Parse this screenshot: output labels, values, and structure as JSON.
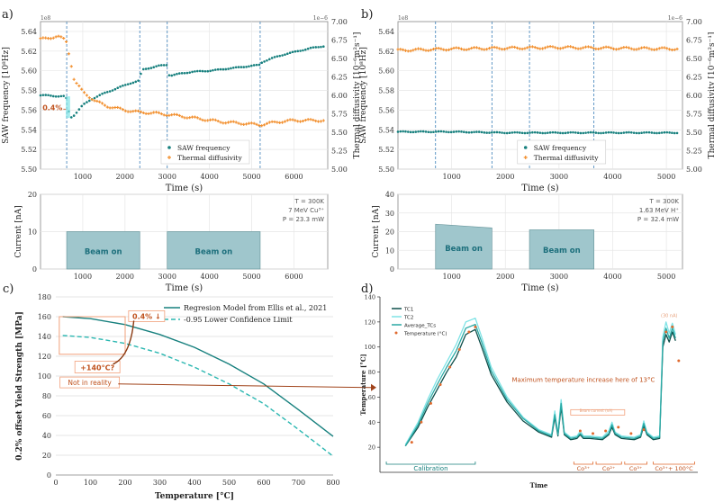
{
  "panel_labels": [
    "a)",
    "b)",
    "c)",
    "d)"
  ],
  "chart_data": [
    {
      "id": "a_top",
      "type": "line",
      "title": "",
      "xlabel": "Time (s)",
      "ylabel": "SAW frequency [10⁸Hz]",
      "y2label": "Thermal diffusivity [10⁻⁶m²s⁻¹]",
      "xlim": [
        0,
        6800
      ],
      "ylim": [
        5.5,
        5.65
      ],
      "y2lim": [
        5.0,
        7.0
      ],
      "xticks": [
        1000,
        2000,
        3000,
        4000,
        5000,
        6000
      ],
      "yticks": [
        5.5,
        5.52,
        5.54,
        5.56,
        5.58,
        5.6,
        5.62,
        5.64
      ],
      "y2ticks": [
        5.0,
        5.25,
        5.5,
        5.75,
        6.0,
        6.25,
        6.5,
        6.75,
        7.0
      ],
      "scale_left": "1e8",
      "scale_right": "1e−6",
      "vlines": [
        620,
        2350,
        3000,
        5200
      ],
      "annotation": "0.4%",
      "legend": [
        "SAW frequency",
        "Thermal diffusivity"
      ],
      "series": [
        {
          "name": "SAW frequency",
          "axis": "left",
          "color": "#17807e",
          "x": [
            0,
            200,
            400,
            600,
            700,
            800,
            1000,
            1200,
            1500,
            1800,
            2100,
            2340,
            2400,
            2600,
            2800,
            2990,
            3050,
            3300,
            3600,
            4000,
            4400,
            4800,
            5190,
            5250,
            5500,
            5800,
            6100,
            6400,
            6700
          ],
          "y": [
            5.575,
            5.575,
            5.574,
            5.574,
            5.552,
            5.555,
            5.565,
            5.571,
            5.577,
            5.582,
            5.587,
            5.59,
            5.601,
            5.603,
            5.605,
            5.606,
            5.595,
            5.597,
            5.599,
            5.6,
            5.602,
            5.604,
            5.606,
            5.609,
            5.613,
            5.617,
            5.62,
            5.623,
            5.625
          ]
        },
        {
          "name": "Thermal diffusivity",
          "axis": "right",
          "color": "#f28e2b",
          "x": [
            0,
            200,
            400,
            600,
            700,
            800,
            1000,
            1300,
            1600,
            2000,
            2350,
            2700,
            3000,
            3300,
            3800,
            4300,
            4800,
            5200,
            5600,
            6000,
            6400,
            6700
          ],
          "y": [
            6.76,
            6.78,
            6.8,
            6.75,
            6.5,
            6.2,
            6.05,
            5.92,
            5.85,
            5.8,
            5.77,
            5.76,
            5.74,
            5.72,
            5.68,
            5.64,
            5.62,
            5.6,
            5.64,
            5.66,
            5.66,
            5.66
          ]
        }
      ]
    },
    {
      "id": "a_bottom",
      "type": "area",
      "xlabel": "Time (s)",
      "ylabel": "Current [nA]",
      "xlim": [
        0,
        6800
      ],
      "ylim": [
        0,
        20
      ],
      "xticks": [
        1000,
        2000,
        3000,
        4000,
        5000,
        6000
      ],
      "yticks": [
        0,
        10,
        20
      ],
      "info": [
        "T = 300K",
        "7 MeV Cu³⁺",
        "P = 23.3 mW"
      ],
      "segments": [
        {
          "x0": 620,
          "x1": 2350,
          "level": 10,
          "label": "Beam on"
        },
        {
          "x0": 3000,
          "x1": 5200,
          "level": 10,
          "label": "Beam on"
        }
      ]
    },
    {
      "id": "b_top",
      "type": "line",
      "xlabel": "Time (s)",
      "ylabel": "SAW frequency [10⁸Hz]",
      "y2label": "Thermal diffusivity [10⁻⁶m²s⁻¹]",
      "xlim": [
        0,
        5300
      ],
      "ylim": [
        5.5,
        5.65
      ],
      "y2lim": [
        5.0,
        7.0
      ],
      "xticks": [
        1000,
        2000,
        3000,
        4000,
        5000
      ],
      "yticks": [
        5.5,
        5.52,
        5.54,
        5.56,
        5.58,
        5.6,
        5.62,
        5.64
      ],
      "y2ticks": [
        5.0,
        5.25,
        5.5,
        5.75,
        6.0,
        6.25,
        6.5,
        6.75,
        7.0
      ],
      "scale_left": "1e8",
      "scale_right": "1e−6",
      "vlines": [
        700,
        1750,
        2450,
        3650
      ],
      "legend": [
        "SAW frequency",
        "Thermal diffusivity"
      ],
      "series": [
        {
          "name": "SAW frequency",
          "axis": "left",
          "color": "#17807e",
          "x": [
            0,
            1000,
            2000,
            3000,
            4000,
            5200
          ],
          "y": [
            5.538,
            5.538,
            5.537,
            5.537,
            5.537,
            5.537
          ]
        },
        {
          "name": "Thermal diffusivity",
          "axis": "right",
          "color": "#f28e2b",
          "x": [
            0,
            1000,
            2000,
            3000,
            4000,
            5200
          ],
          "y": [
            6.61,
            6.63,
            6.64,
            6.65,
            6.64,
            6.63
          ]
        }
      ]
    },
    {
      "id": "b_bottom",
      "type": "area",
      "xlabel": "Time (s)",
      "ylabel": "Current [nA]",
      "xlim": [
        0,
        5300
      ],
      "ylim": [
        0,
        40
      ],
      "xticks": [
        1000,
        2000,
        3000,
        4000,
        5000
      ],
      "yticks": [
        0,
        10,
        20,
        30,
        40
      ],
      "info": [
        "T = 300K",
        "1.63 MeV H⁺",
        "P = 32.4 mW"
      ],
      "segments": [
        {
          "x0": 700,
          "x1": 1750,
          "level_start": 24,
          "level_end": 22,
          "label": "Beam on"
        },
        {
          "x0": 2450,
          "x1": 3650,
          "level_start": 21,
          "level_end": 21,
          "label": "Beam on"
        }
      ]
    },
    {
      "id": "c",
      "type": "line",
      "xlabel": "Temperature [°C]",
      "ylabel": "0.2% offset Yield Strength [MPa]",
      "xlim": [
        0,
        800
      ],
      "ylim": [
        0,
        180
      ],
      "xticks": [
        0,
        100,
        200,
        300,
        400,
        500,
        600,
        700,
        800
      ],
      "yticks": [
        0,
        20,
        40,
        60,
        80,
        100,
        120,
        140,
        160,
        180
      ],
      "series": [
        {
          "name": "Regresion Model from Ellis et al., 2021",
          "style": "solid",
          "color": "#17807e",
          "x": [
            20,
            100,
            200,
            300,
            400,
            500,
            600,
            700,
            800
          ],
          "y": [
            160,
            158,
            152,
            142,
            129,
            112,
            92,
            66,
            39
          ]
        },
        {
          "name": "0.95 Lower Confidence Limit",
          "style": "dashed",
          "color": "#2bb7b1",
          "x": [
            20,
            100,
            200,
            300,
            400,
            500,
            600,
            700,
            800
          ],
          "y": [
            141,
            139,
            133,
            123,
            109,
            92,
            72,
            46,
            19
          ]
        }
      ],
      "annotations": [
        "0.4% ↓",
        "+140°C?",
        "Not in reality"
      ]
    },
    {
      "id": "d",
      "type": "line",
      "xlabel": "Time",
      "ylabel": "Temperature [°C]",
      "xlim": [
        0,
        100
      ],
      "ylim": [
        0,
        140
      ],
      "yticks": [
        20,
        40,
        60,
        80,
        100,
        120,
        140
      ],
      "series": [
        {
          "name": "TC1",
          "color": "#0e4f4b",
          "x": [
            8,
            12,
            15,
            18,
            21,
            24,
            27,
            30,
            32,
            35,
            40,
            45,
            50,
            54,
            55,
            56,
            57,
            58,
            60,
            62,
            63,
            64,
            66,
            70,
            72,
            73,
            74,
            76,
            80,
            82,
            83,
            84,
            86,
            88,
            89,
            90,
            91,
            92,
            93
          ],
          "y": [
            21,
            36,
            52,
            66,
            80,
            92,
            110,
            114,
            100,
            78,
            56,
            41,
            32,
            28,
            44,
            29,
            52,
            30,
            26,
            27,
            30,
            27,
            27,
            26,
            30,
            36,
            30,
            27,
            26,
            28,
            37,
            30,
            26,
            27,
            100,
            110,
            104,
            112,
            105
          ]
        },
        {
          "name": "TC2",
          "color": "#7fe3e6",
          "x": [
            8,
            12,
            15,
            18,
            21,
            24,
            27,
            30,
            32,
            35,
            40,
            45,
            50,
            54,
            55,
            56,
            57,
            58,
            60,
            62,
            63,
            64,
            66,
            70,
            72,
            73,
            74,
            76,
            80,
            82,
            83,
            84,
            86,
            88,
            89,
            90,
            91,
            92,
            93
          ],
          "y": [
            22,
            40,
            58,
            74,
            88,
            102,
            120,
            123,
            108,
            84,
            60,
            44,
            34,
            30,
            49,
            31,
            58,
            32,
            28,
            29,
            33,
            29,
            29,
            28,
            33,
            40,
            32,
            29,
            28,
            30,
            41,
            32,
            28,
            29,
            108,
            120,
            111,
            119,
            110
          ]
        },
        {
          "name": "Average_TCs",
          "color": "#2aa9a4",
          "x": [
            8,
            12,
            15,
            18,
            21,
            24,
            27,
            30,
            32,
            35,
            40,
            45,
            50,
            54,
            55,
            56,
            57,
            58,
            60,
            62,
            63,
            64,
            66,
            70,
            72,
            73,
            74,
            76,
            80,
            82,
            83,
            84,
            86,
            88,
            89,
            90,
            91,
            92,
            93
          ],
          "y": [
            21,
            38,
            55,
            70,
            84,
            97,
            115,
            118,
            104,
            81,
            58,
            43,
            33,
            29,
            46,
            30,
            55,
            31,
            27,
            28,
            31,
            28,
            28,
            27,
            31,
            38,
            31,
            28,
            27,
            29,
            39,
            31,
            27,
            28,
            104,
            115,
            107,
            115,
            107
          ]
        },
        {
          "name": "Temperature (°C)",
          "color": "#e06a2e",
          "type": "scatter",
          "x": [
            10,
            13,
            16,
            19,
            22,
            25,
            28,
            30,
            63,
            67,
            71,
            75,
            79,
            83,
            90,
            92,
            94
          ],
          "y": [
            24,
            40,
            55,
            70,
            84,
            98,
            112,
            116,
            33,
            31,
            33,
            36,
            31,
            34,
            112,
            116,
            89
          ]
        }
      ],
      "annotations": [
        "Maximum temperature increase here of 13°C",
        "Calibration",
        "Co³⁺",
        "Co²⁺",
        "Co³⁺",
        "Co³⁺+ 100°C",
        "Beam current (nA)",
        "(30 nA)"
      ]
    }
  ]
}
